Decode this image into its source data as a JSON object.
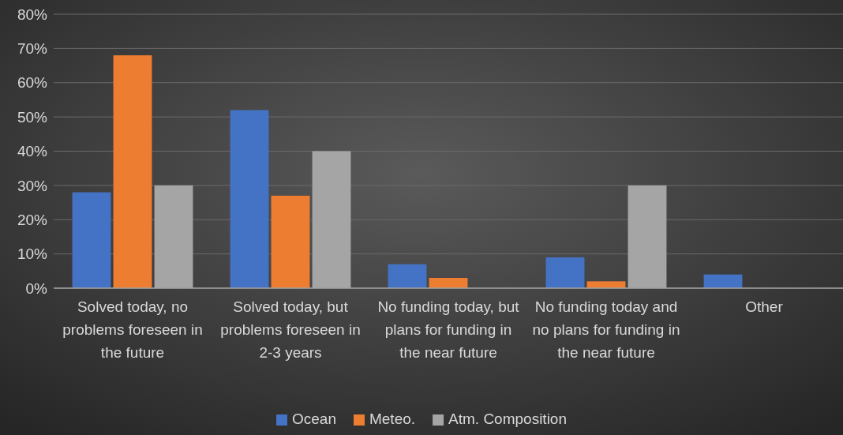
{
  "chart_data": {
    "type": "bar",
    "categories": [
      "Solved today, no problems foreseen in the future",
      "Solved today, but problems foreseen in 2-3 years",
      "No funding today, but plans for funding in the near future",
      "No funding today and no plans for funding in the near future",
      "Other"
    ],
    "series": [
      {
        "name": "Ocean",
        "color": "#4472c4",
        "values": [
          28,
          52,
          7,
          9,
          4
        ]
      },
      {
        "name": "Meteo.",
        "color": "#ed7d31",
        "values": [
          68,
          27,
          3,
          2,
          0
        ]
      },
      {
        "name": "Atm. Composition",
        "color": "#a5a5a5",
        "values": [
          30,
          40,
          0,
          30,
          0
        ]
      }
    ],
    "ylim": [
      0,
      80
    ],
    "yticks": [
      {
        "value": 0,
        "label": "0%"
      },
      {
        "value": 10,
        "label": "10%"
      },
      {
        "value": 20,
        "label": "20%"
      },
      {
        "value": 30,
        "label": "30%"
      },
      {
        "value": 40,
        "label": "40%"
      },
      {
        "value": 50,
        "label": "50%"
      },
      {
        "value": 60,
        "label": "60%"
      },
      {
        "value": 70,
        "label": "70%"
      },
      {
        "value": 80,
        "label": "80%"
      }
    ],
    "grid": "y",
    "legend": "bottom"
  }
}
